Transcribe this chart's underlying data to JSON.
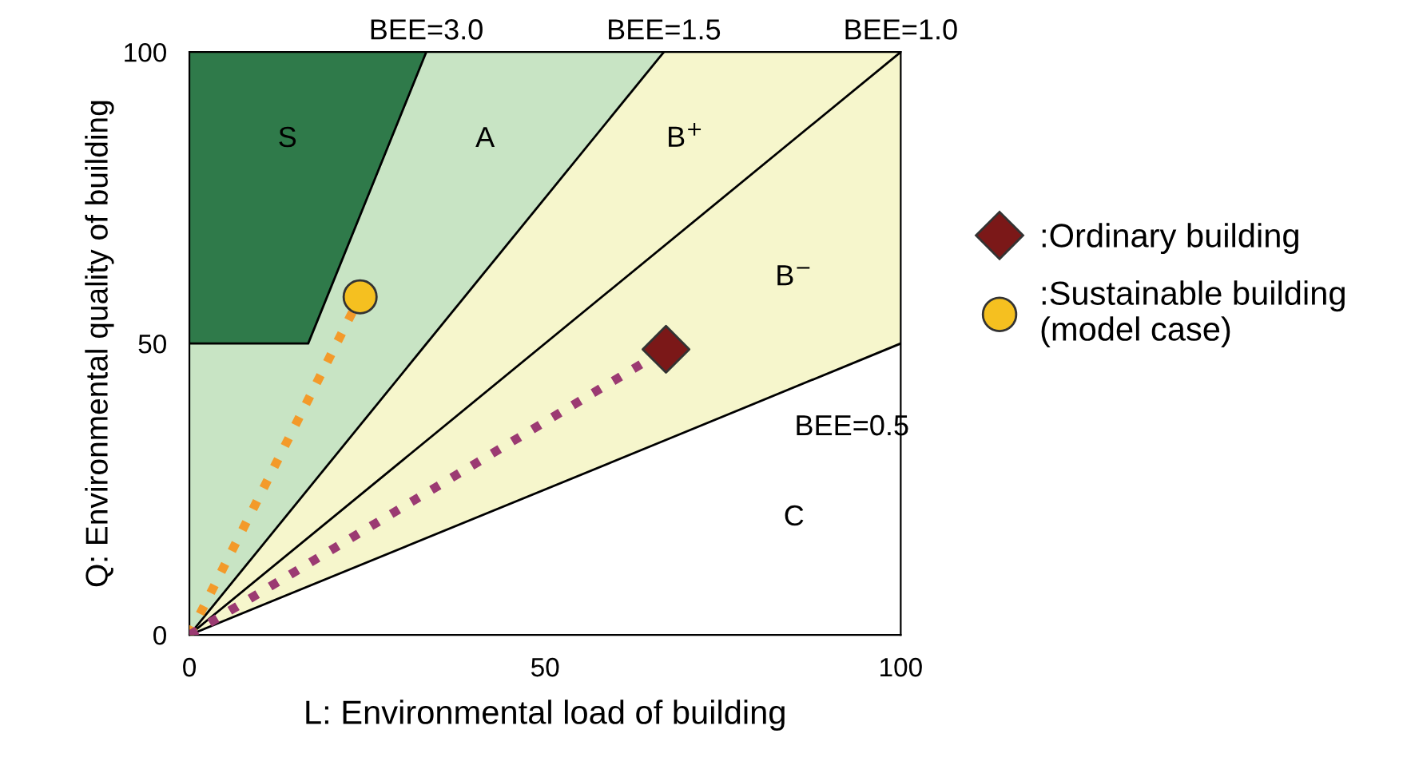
{
  "chart_data": {
    "type": "line",
    "xlabel": "L: Environmental load of building",
    "ylabel": "Q: Environmental quality of building",
    "xlim": [
      0,
      100
    ],
    "ylim": [
      0,
      100
    ],
    "xticks": [
      0,
      50,
      100
    ],
    "yticks": [
      0,
      50,
      100
    ],
    "grid": false,
    "legend": "right",
    "series": [
      {
        "color": "#000000",
        "colors": [
          "#c8e4c4",
          "#c8e4c4"
        ],
        "x": [
          0,
          66.7
        ],
        "values": [
          0,
          100
        ],
        "lower": [
          0,
          100
        ],
        "upper": [
          100,
          100
        ]
      },
      {
        "color": "#000000",
        "colors": [
          "#f6f6cc",
          "#f6f6cc",
          "#f6f6cc"
        ],
        "x": [
          0,
          66.7,
          100
        ],
        "values": [
          0,
          33.3,
          50
        ],
        "lower": [
          0,
          33.3,
          50
        ],
        "upper": [
          0,
          100,
          100
        ]
      },
      {
        "color": "#000000",
        "colors": [
          "#2f7a4a",
          "#2f7a4a",
          "#2f7a4a"
        ],
        "x": [
          0,
          16.7,
          33.3
        ],
        "values": [
          50,
          50,
          100
        ],
        "lower": [
          50,
          50,
          100
        ],
        "upper": [
          100,
          100,
          100
        ]
      },
      {
        "color": "#000000",
        "x": [
          0,
          100
        ],
        "values": [
          0,
          100
        ]
      },
      {
        "color": "#f39a2a",
        "line_style": "dotted",
        "x": [
          0,
          24
        ],
        "values": [
          0,
          58
        ]
      },
      {
        "color": "#9b3a72",
        "line_style": "dotted",
        "x": [
          0,
          67
        ],
        "values": [
          0,
          49
        ]
      },
      {
        "type": "scatter",
        "name": ":Ordinary building",
        "color": "#7b1818",
        "marker": "diamond",
        "x": [
          67
        ],
        "values": [
          49
        ]
      },
      {
        "type": "scatter",
        "name": ":Sustainable building\n(model case)",
        "color": "#f5c020",
        "marker": "circle",
        "x": [
          24
        ],
        "values": [
          58
        ]
      }
    ],
    "annotations": [
      {
        "text": "BEE=3.0",
        "x": 33.3,
        "y": 100
      },
      {
        "text": "BEE=1.5",
        "x": 66.7,
        "y": 100
      },
      {
        "text": "BEE=1.0",
        "x": 100,
        "y": 100
      },
      {
        "text": "BEE=0.5",
        "x": 100,
        "y": 50
      },
      "S",
      "A",
      "B$^{+}$",
      "B$^{−}$",
      "C"
    ]
  }
}
